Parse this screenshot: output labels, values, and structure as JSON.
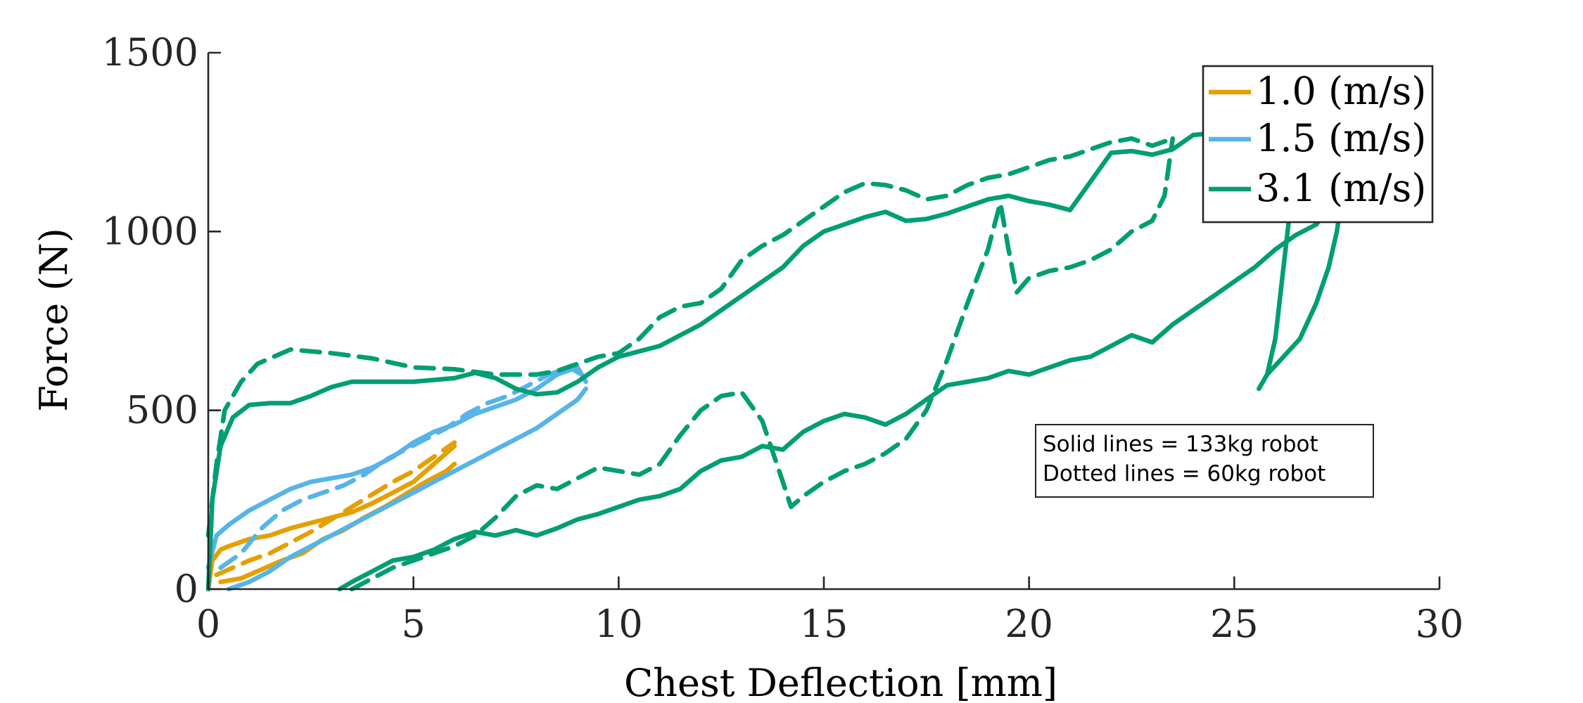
{
  "chart_data": {
    "type": "line",
    "xlabel": "Chest Deflection [mm]",
    "ylabel": "Force (N)",
    "xlim": [
      0,
      30
    ],
    "ylim": [
      0,
      1500
    ],
    "xticks": [
      0,
      5,
      10,
      15,
      20,
      25,
      30
    ],
    "yticks": [
      0,
      500,
      1000,
      1500
    ],
    "grid": false,
    "legend_position": "top-right",
    "legend": [
      {
        "label": "1.0 (m/s)",
        "color": "#E69F00"
      },
      {
        "label": "1.5 (m/s)",
        "color": "#56B4E9"
      },
      {
        "label": "3.1 (m/s)",
        "color": "#009E73"
      }
    ],
    "annotation": {
      "line1": "Solid lines = 133kg robot",
      "line2": "Dotted lines = 60kg robot"
    },
    "series": [
      {
        "speed": "1.0 (m/s)",
        "style": "solid",
        "color": "#E69F00",
        "points": [
          [
            0,
            0
          ],
          [
            0.1,
            80
          ],
          [
            0.3,
            110
          ],
          [
            0.5,
            120
          ],
          [
            1,
            140
          ],
          [
            1.5,
            150
          ],
          [
            2,
            170
          ],
          [
            2.5,
            185
          ],
          [
            3,
            200
          ],
          [
            3.5,
            215
          ],
          [
            4,
            240
          ],
          [
            4.5,
            270
          ],
          [
            5,
            300
          ],
          [
            5.5,
            350
          ],
          [
            6,
            400
          ]
        ]
      },
      {
        "speed": "1.0 (m/s)",
        "style": "solid",
        "color": "#E69F00",
        "points": [
          [
            0.3,
            20
          ],
          [
            0.8,
            30
          ],
          [
            1.2,
            50
          ],
          [
            1.8,
            80
          ],
          [
            2.3,
            100
          ],
          [
            2.8,
            140
          ],
          [
            3.3,
            165
          ],
          [
            3.8,
            200
          ],
          [
            4.3,
            230
          ],
          [
            4.8,
            265
          ],
          [
            5.3,
            300
          ],
          [
            5.8,
            330
          ],
          [
            6,
            350
          ]
        ]
      },
      {
        "speed": "1.0 (m/s)",
        "style": "dashed",
        "color": "#E69F00",
        "points": [
          [
            0.2,
            40
          ],
          [
            0.6,
            60
          ],
          [
            1,
            80
          ],
          [
            1.5,
            100
          ],
          [
            2,
            130
          ],
          [
            2.5,
            160
          ],
          [
            3,
            195
          ],
          [
            3.5,
            230
          ],
          [
            4,
            265
          ],
          [
            4.5,
            300
          ],
          [
            5,
            330
          ],
          [
            5.5,
            370
          ],
          [
            6,
            410
          ]
        ]
      },
      {
        "speed": "1.5 (m/s)",
        "style": "solid",
        "color": "#56B4E9",
        "points": [
          [
            0,
            60
          ],
          [
            0.2,
            150
          ],
          [
            0.5,
            180
          ],
          [
            1,
            220
          ],
          [
            1.5,
            250
          ],
          [
            2,
            280
          ],
          [
            2.5,
            300
          ],
          [
            3,
            310
          ],
          [
            3.5,
            320
          ],
          [
            4,
            340
          ],
          [
            4.5,
            370
          ],
          [
            5,
            410
          ],
          [
            5.5,
            440
          ],
          [
            6,
            460
          ],
          [
            6.5,
            490
          ],
          [
            7,
            510
          ],
          [
            7.5,
            530
          ],
          [
            8,
            560
          ],
          [
            8.5,
            600
          ],
          [
            9,
            620
          ],
          [
            9.2,
            580
          ]
        ]
      },
      {
        "speed": "1.5 (m/s)",
        "style": "solid",
        "color": "#56B4E9",
        "points": [
          [
            0.5,
            0
          ],
          [
            1,
            20
          ],
          [
            1.5,
            50
          ],
          [
            2,
            90
          ],
          [
            2.5,
            120
          ],
          [
            3,
            150
          ],
          [
            3.5,
            180
          ],
          [
            4,
            210
          ],
          [
            4.5,
            240
          ],
          [
            5,
            270
          ],
          [
            5.5,
            300
          ],
          [
            6,
            330
          ],
          [
            6.5,
            360
          ],
          [
            7,
            390
          ],
          [
            7.5,
            420
          ],
          [
            8,
            450
          ],
          [
            8.5,
            490
          ],
          [
            9,
            530
          ],
          [
            9.2,
            560
          ]
        ]
      },
      {
        "speed": "1.5 (m/s)",
        "style": "dashed",
        "color": "#56B4E9",
        "points": [
          [
            0.3,
            60
          ],
          [
            0.8,
            100
          ],
          [
            1.3,
            170
          ],
          [
            1.8,
            220
          ],
          [
            2.3,
            250
          ],
          [
            2.8,
            270
          ],
          [
            3.3,
            290
          ],
          [
            3.8,
            320
          ],
          [
            4.3,
            360
          ],
          [
            4.8,
            390
          ],
          [
            5.3,
            420
          ],
          [
            5.8,
            450
          ],
          [
            6.3,
            490
          ],
          [
            6.8,
            520
          ],
          [
            7.3,
            540
          ],
          [
            7.8,
            570
          ],
          [
            8.3,
            600
          ],
          [
            8.8,
            620
          ],
          [
            9.1,
            600
          ]
        ]
      },
      {
        "speed": "3.1 (m/s)",
        "style": "solid",
        "color": "#009E73",
        "points": [
          [
            0,
            0
          ],
          [
            0.1,
            250
          ],
          [
            0.3,
            400
          ],
          [
            0.6,
            480
          ],
          [
            1,
            515
          ],
          [
            1.5,
            520
          ],
          [
            2,
            520
          ],
          [
            2.5,
            540
          ],
          [
            3,
            565
          ],
          [
            3.5,
            580
          ],
          [
            4,
            580
          ],
          [
            5,
            580
          ],
          [
            6,
            590
          ],
          [
            6.5,
            605
          ],
          [
            7,
            590
          ],
          [
            7.5,
            560
          ],
          [
            8,
            545
          ],
          [
            8.5,
            550
          ],
          [
            9,
            580
          ],
          [
            9.5,
            620
          ],
          [
            10,
            650
          ],
          [
            11,
            680
          ],
          [
            12,
            740
          ],
          [
            13,
            820
          ],
          [
            14,
            900
          ],
          [
            14.5,
            960
          ],
          [
            15,
            1000
          ],
          [
            15.5,
            1020
          ],
          [
            16,
            1040
          ],
          [
            16.5,
            1055
          ],
          [
            17,
            1030
          ],
          [
            17.5,
            1035
          ],
          [
            18,
            1050
          ],
          [
            18.5,
            1070
          ],
          [
            19,
            1090
          ],
          [
            19.5,
            1100
          ],
          [
            20,
            1085
          ],
          [
            20.5,
            1075
          ],
          [
            21,
            1060
          ],
          [
            21.5,
            1140
          ],
          [
            22,
            1220
          ],
          [
            22.5,
            1225
          ],
          [
            23,
            1215
          ],
          [
            23.5,
            1230
          ],
          [
            24,
            1270
          ],
          [
            25,
            1280
          ],
          [
            26,
            1290
          ],
          [
            27,
            1300
          ]
        ]
      },
      {
        "speed": "3.1 (m/s)",
        "style": "solid",
        "color": "#009E73",
        "points": [
          [
            3.2,
            0
          ],
          [
            3.5,
            20
          ],
          [
            4,
            50
          ],
          [
            4.5,
            80
          ],
          [
            5,
            90
          ],
          [
            5.5,
            110
          ],
          [
            6,
            140
          ],
          [
            6.5,
            160
          ],
          [
            7,
            150
          ],
          [
            7.5,
            165
          ],
          [
            8,
            150
          ],
          [
            8.5,
            170
          ],
          [
            9,
            195
          ],
          [
            9.5,
            210
          ],
          [
            10,
            230
          ],
          [
            10.5,
            250
          ],
          [
            11,
            260
          ],
          [
            11.5,
            280
          ],
          [
            12,
            330
          ],
          [
            12.5,
            360
          ],
          [
            13,
            370
          ],
          [
            13.5,
            400
          ],
          [
            14,
            390
          ],
          [
            14.5,
            440
          ],
          [
            15,
            470
          ],
          [
            15.5,
            490
          ],
          [
            16,
            480
          ],
          [
            16.5,
            460
          ],
          [
            17,
            490
          ],
          [
            17.5,
            530
          ],
          [
            18,
            570
          ],
          [
            18.5,
            580
          ],
          [
            19,
            590
          ],
          [
            19.5,
            610
          ],
          [
            20,
            600
          ],
          [
            20.5,
            620
          ],
          [
            21,
            640
          ],
          [
            21.5,
            650
          ],
          [
            22,
            680
          ],
          [
            22.5,
            710
          ],
          [
            23,
            690
          ],
          [
            23.5,
            740
          ],
          [
            24,
            780
          ],
          [
            24.5,
            820
          ],
          [
            25,
            860
          ],
          [
            25.5,
            900
          ],
          [
            26,
            950
          ],
          [
            26.5,
            990
          ],
          [
            27,
            1020
          ],
          [
            27.5,
            1100
          ]
        ]
      },
      {
        "speed": "3.1 (m/s)",
        "style": "solid",
        "color": "#009E73",
        "points": [
          [
            25.6,
            560
          ],
          [
            25.8,
            600
          ],
          [
            26,
            700
          ],
          [
            26.2,
            900
          ],
          [
            26.4,
            1100
          ],
          [
            26.6,
            1200
          ],
          [
            26.8,
            1260
          ],
          [
            27,
            1290
          ]
        ]
      },
      {
        "speed": "3.1 (m/s)",
        "style": "solid",
        "color": "#009E73",
        "points": [
          [
            25.8,
            600
          ],
          [
            26.2,
            650
          ],
          [
            26.6,
            700
          ],
          [
            27,
            800
          ],
          [
            27.3,
            900
          ],
          [
            27.5,
            1000
          ],
          [
            27.6,
            1080
          ]
        ]
      },
      {
        "speed": "3.1 (m/s)",
        "style": "dashed",
        "color": "#009E73",
        "points": [
          [
            0,
            150
          ],
          [
            0.2,
            350
          ],
          [
            0.4,
            500
          ],
          [
            0.8,
            580
          ],
          [
            1.2,
            630
          ],
          [
            2,
            670
          ],
          [
            3,
            660
          ],
          [
            4,
            645
          ],
          [
            5,
            620
          ],
          [
            6,
            615
          ],
          [
            7,
            600
          ],
          [
            8,
            600
          ],
          [
            8.5,
            610
          ],
          [
            9,
            630
          ],
          [
            9.5,
            650
          ],
          [
            10,
            660
          ],
          [
            10.5,
            700
          ],
          [
            11,
            760
          ],
          [
            11.5,
            790
          ],
          [
            12,
            800
          ],
          [
            12.5,
            840
          ],
          [
            13,
            920
          ],
          [
            13.5,
            960
          ],
          [
            14,
            990
          ],
          [
            14.5,
            1030
          ],
          [
            15,
            1070
          ],
          [
            15.5,
            1110
          ],
          [
            16,
            1135
          ],
          [
            16.5,
            1130
          ],
          [
            17,
            1115
          ],
          [
            17.5,
            1090
          ],
          [
            18,
            1100
          ],
          [
            18.5,
            1130
          ],
          [
            19,
            1150
          ],
          [
            19.5,
            1160
          ],
          [
            20,
            1180
          ],
          [
            20.5,
            1200
          ],
          [
            21,
            1210
          ],
          [
            21.5,
            1230
          ],
          [
            22,
            1250
          ],
          [
            22.5,
            1260
          ],
          [
            23,
            1240
          ],
          [
            23.5,
            1260
          ]
        ]
      },
      {
        "speed": "3.1 (m/s)",
        "style": "dashed",
        "color": "#009E73",
        "points": [
          [
            3.5,
            0
          ],
          [
            4,
            30
          ],
          [
            4.5,
            60
          ],
          [
            5,
            80
          ],
          [
            5.5,
            100
          ],
          [
            6,
            120
          ],
          [
            6.5,
            150
          ],
          [
            7,
            200
          ],
          [
            7.5,
            260
          ],
          [
            8,
            290
          ],
          [
            8.5,
            280
          ],
          [
            9,
            310
          ],
          [
            9.5,
            340
          ],
          [
            10,
            330
          ],
          [
            10.5,
            320
          ],
          [
            11,
            350
          ],
          [
            11.5,
            430
          ],
          [
            12,
            500
          ],
          [
            12.5,
            540
          ],
          [
            13,
            550
          ],
          [
            13.5,
            470
          ],
          [
            14,
            300
          ],
          [
            14.2,
            230
          ],
          [
            14.5,
            260
          ],
          [
            15,
            300
          ],
          [
            15.5,
            330
          ],
          [
            16,
            350
          ],
          [
            16.5,
            380
          ],
          [
            17,
            420
          ],
          [
            17.5,
            500
          ],
          [
            18,
            640
          ],
          [
            18.5,
            800
          ],
          [
            19,
            950
          ],
          [
            19.3,
            1080
          ],
          [
            19.5,
            950
          ],
          [
            19.7,
            830
          ],
          [
            20,
            870
          ],
          [
            20.5,
            890
          ],
          [
            21,
            900
          ],
          [
            21.5,
            920
          ],
          [
            22,
            950
          ],
          [
            22.5,
            1000
          ],
          [
            23,
            1030
          ],
          [
            23.3,
            1100
          ],
          [
            23.5,
            1260
          ]
        ]
      }
    ]
  }
}
